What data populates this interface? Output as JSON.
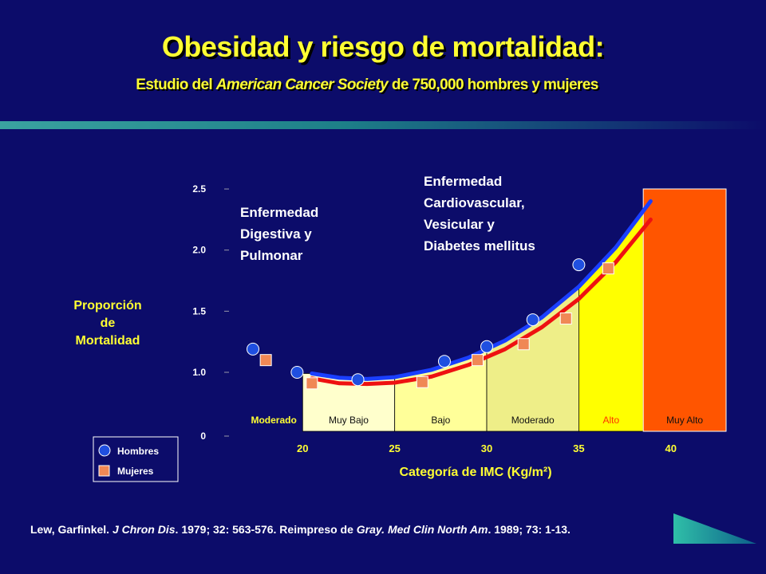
{
  "title": "Obesidad y riesgo de mortalidad:",
  "subtitle": {
    "prefix": "Estudio del ",
    "italic": "American Cancer Society",
    "suffix": " de 750,000 hombres y mujeres"
  },
  "citation": {
    "authors": "Lew, Garfinkel. ",
    "journal1": "J Chron Dis",
    "ref1": ". 1979; 32: 563-576. Reimpreso de ",
    "author2": "Gray. ",
    "journal2": "Med Clin North Am",
    "ref2": ". 1989; 73: 1-13."
  },
  "chart_data": {
    "type": "line",
    "ylabel": "Proporción de Mortalidad",
    "xlabel": "Categoría de IMC (Kg/m²)",
    "y_ticks": [
      "2.5",
      "2.0",
      "1.5",
      "1.0",
      "0"
    ],
    "x_ticks": [
      "20",
      "25",
      "30",
      "35",
      "40"
    ],
    "xlim": [
      16,
      43
    ],
    "ylim": [
      0.5,
      2.5
    ],
    "annotations": [
      {
        "lines": [
          "Enfermedad",
          "Digestiva y",
          "Pulmonar"
        ]
      },
      {
        "lines": [
          "Enfermedad",
          "Cardiovascular,",
          "Vesicular y",
          "Diabetes mellitus"
        ]
      }
    ],
    "regions": [
      {
        "label": "Moderado",
        "x0": 16,
        "x1": 20,
        "fill": "#0c0c6a",
        "label_color": "#ffff33"
      },
      {
        "label": "Muy Bajo",
        "x0": 20,
        "x1": 25,
        "fill": "#ffffcc",
        "label_color": "#111111"
      },
      {
        "label": "Bajo",
        "x0": 25,
        "x1": 30,
        "fill": "#ffff99",
        "label_color": "#111111"
      },
      {
        "label": "Moderado",
        "x0": 30,
        "x1": 35,
        "fill": "#eeee88",
        "label_color": "#111111"
      },
      {
        "label": "Alto",
        "x0": 35,
        "x1": 38.5,
        "fill": "#ffff00",
        "label_color": "#ff3300"
      },
      {
        "label": "Muy Alto",
        "x0": 38.5,
        "x1": 43,
        "fill": "#ff5500",
        "label_color": "#111111"
      }
    ],
    "series": [
      {
        "name": "Hombres",
        "color": "#1a3fff",
        "marker_color": "#1f4fe0",
        "marker": "circle",
        "points": [
          [
            17.3,
            1.19
          ],
          [
            19.7,
            1.0
          ],
          [
            23.0,
            0.94
          ],
          [
            27.7,
            1.09
          ],
          [
            30.0,
            1.21
          ],
          [
            32.5,
            1.43
          ],
          [
            35.0,
            1.88
          ]
        ],
        "curve": [
          [
            20.5,
            0.99
          ],
          [
            22,
            0.955
          ],
          [
            23.5,
            0.945
          ],
          [
            25,
            0.96
          ],
          [
            27,
            1.02
          ],
          [
            29,
            1.12
          ],
          [
            31,
            1.26
          ],
          [
            33,
            1.45
          ],
          [
            35,
            1.7
          ],
          [
            37,
            2.02
          ],
          [
            38.9,
            2.4
          ]
        ]
      },
      {
        "name": "Mujeres",
        "color": "#ee1111",
        "marker_color": "#f08855",
        "marker": "square",
        "points": [
          [
            18.0,
            1.1
          ],
          [
            20.5,
            0.91
          ],
          [
            26.5,
            0.92
          ],
          [
            29.5,
            1.1
          ],
          [
            32.0,
            1.23
          ],
          [
            34.3,
            1.44
          ],
          [
            36.6,
            1.85
          ]
        ],
        "curve": [
          [
            20.5,
            0.95
          ],
          [
            22,
            0.91
          ],
          [
            23.5,
            0.905
          ],
          [
            25,
            0.915
          ],
          [
            27,
            0.965
          ],
          [
            29,
            1.06
          ],
          [
            31,
            1.19
          ],
          [
            33,
            1.37
          ],
          [
            35,
            1.6
          ],
          [
            37,
            1.9
          ],
          [
            38.9,
            2.25
          ]
        ]
      }
    ],
    "legend": {
      "position": "bottom-left",
      "items": [
        "Hombres",
        "Mujeres"
      ]
    }
  }
}
